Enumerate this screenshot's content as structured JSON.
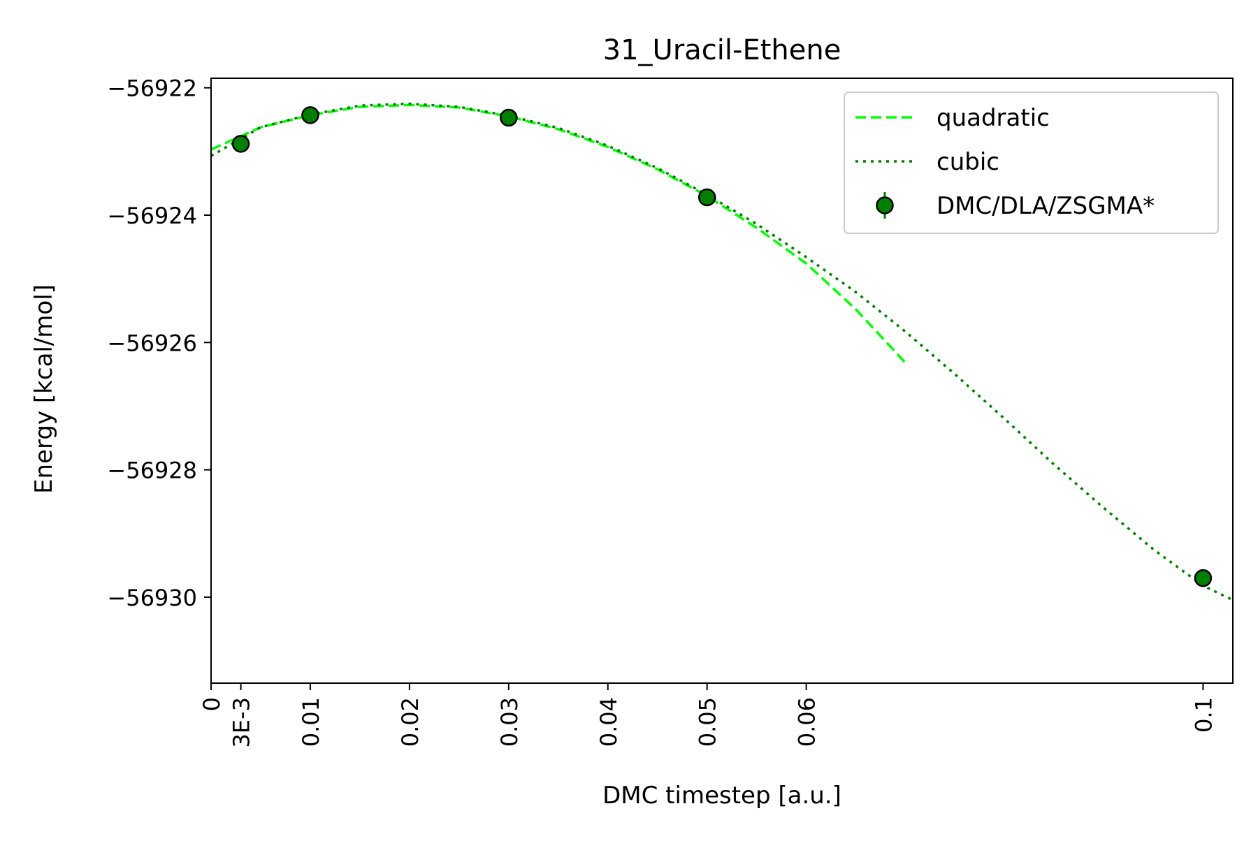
{
  "chart_data": {
    "type": "line",
    "title": "31_Uracil-Ethene",
    "xlabel": "DMC timestep [a.u.]",
    "ylabel": "Energy [kcal/mol]",
    "xlim": [
      0,
      0.103
    ],
    "ylim": [
      -56931.35,
      -56921.85
    ],
    "x_ticks": [
      {
        "value": 0,
        "label": "0"
      },
      {
        "value": 0.003,
        "label": "3E-3"
      },
      {
        "value": 0.01,
        "label": "0.01"
      },
      {
        "value": 0.02,
        "label": "0.02"
      },
      {
        "value": 0.03,
        "label": "0.03"
      },
      {
        "value": 0.04,
        "label": "0.04"
      },
      {
        "value": 0.05,
        "label": "0.05"
      },
      {
        "value": 0.06,
        "label": "0.06"
      },
      {
        "value": 0.1,
        "label": "0.1"
      }
    ],
    "y_ticks": [
      {
        "value": -56922,
        "label": "−56922"
      },
      {
        "value": -56924,
        "label": "−56924"
      },
      {
        "value": -56926,
        "label": "−56926"
      },
      {
        "value": -56928,
        "label": "−56928"
      },
      {
        "value": -56930,
        "label": "−56930"
      }
    ],
    "grid": false,
    "legend_position": "top-right",
    "series": [
      {
        "name": "quadratic",
        "kind": "line",
        "style": "dashed",
        "color": "#00ff00",
        "x": [
          0,
          0.005,
          0.01,
          0.015,
          0.02,
          0.025,
          0.03,
          0.035,
          0.04,
          0.045,
          0.05,
          0.055,
          0.06,
          0.065,
          0.07
        ],
        "y": [
          -56922.97,
          -56922.62,
          -56922.43,
          -56922.3,
          -56922.27,
          -56922.31,
          -56922.45,
          -56922.65,
          -56922.93,
          -56923.28,
          -56923.7,
          -56924.2,
          -56924.76,
          -56925.48,
          -56926.32
        ]
      },
      {
        "name": "cubic",
        "kind": "line",
        "style": "dotted",
        "color": "#007f00",
        "x": [
          0,
          0.005,
          0.01,
          0.015,
          0.02,
          0.025,
          0.03,
          0.035,
          0.04,
          0.045,
          0.05,
          0.055,
          0.06,
          0.065,
          0.07,
          0.075,
          0.08,
          0.085,
          0.09,
          0.095,
          0.1,
          0.1028
        ],
        "y": [
          -56923.07,
          -56922.62,
          -56922.42,
          -56922.28,
          -56922.25,
          -56922.3,
          -56922.44,
          -56922.63,
          -56922.91,
          -56923.26,
          -56923.68,
          -56924.14,
          -56924.66,
          -56925.21,
          -56925.83,
          -56926.5,
          -56927.2,
          -56927.92,
          -56928.6,
          -56929.25,
          -56929.82,
          -56930.03
        ]
      },
      {
        "name": "DMC/DLA/ZSGMA*",
        "kind": "errorbar",
        "color": "#007f00",
        "x": [
          0.003,
          0.01,
          0.03,
          0.05,
          0.1
        ],
        "y": [
          -56922.88,
          -56922.43,
          -56922.47,
          -56923.72,
          -56929.7
        ]
      }
    ]
  }
}
